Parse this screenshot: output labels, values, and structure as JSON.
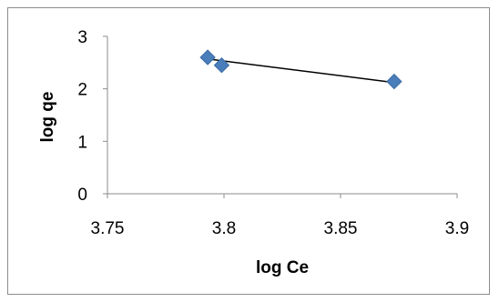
{
  "chart_data": {
    "type": "scatter",
    "title": "",
    "xlabel": "log Ce",
    "ylabel": "log qe",
    "xlim": [
      3.75,
      3.9
    ],
    "ylim": [
      0,
      3
    ],
    "x_ticks": [
      "3.75",
      "3.8",
      "3.85",
      "3.9"
    ],
    "y_ticks": [
      "0",
      "1",
      "2",
      "3"
    ],
    "grid": false,
    "legend": "none",
    "series": [
      {
        "points": [
          {
            "x": 3.793,
            "y": 2.6
          },
          {
            "x": 3.799,
            "y": 2.45
          },
          {
            "x": 3.873,
            "y": 2.14
          }
        ],
        "marker": "diamond",
        "color": "#4a7ebb"
      }
    ],
    "trendline": {
      "type": "linear",
      "from": {
        "x": 3.793,
        "y": 2.57
      },
      "to": {
        "x": 3.873,
        "y": 2.12
      },
      "color": "#000000"
    }
  }
}
